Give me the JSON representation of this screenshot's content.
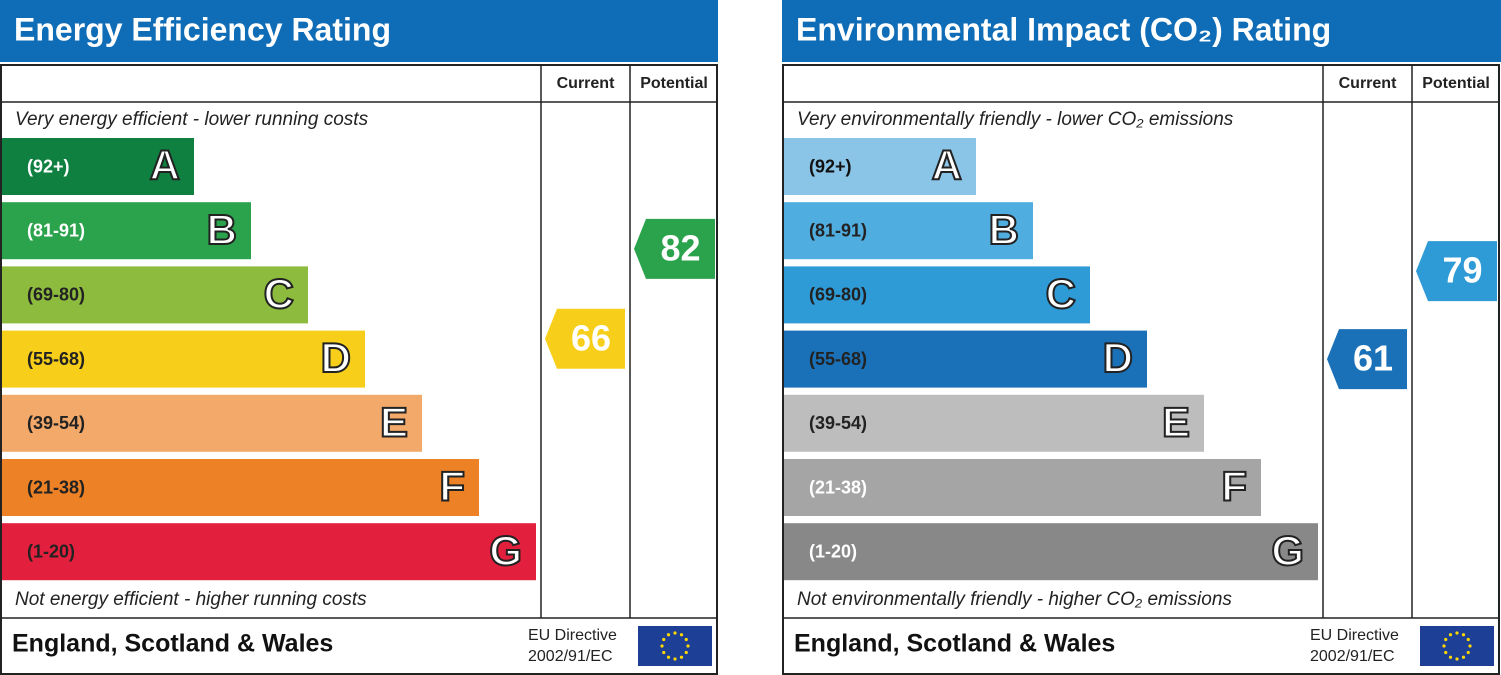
{
  "panels": [
    {
      "title": "Energy Efficiency Rating",
      "header": [
        "Current",
        "Potential"
      ],
      "top_note": "Very energy efficient - lower running costs",
      "bottom_note": "Not energy efficient - higher running costs",
      "bands": [
        {
          "range": "(92+)",
          "letter": "A",
          "color": "#0f8040",
          "text_color": "#ffffff"
        },
        {
          "range": "(81-91)",
          "letter": "B",
          "color": "#2ba24c",
          "text_color": "#ffffff"
        },
        {
          "range": "(69-80)",
          "letter": "C",
          "color": "#8dbb3e",
          "text_color": "#222222"
        },
        {
          "range": "(55-68)",
          "letter": "D",
          "color": "#f7cf1a",
          "text_color": "#222222"
        },
        {
          "range": "(39-54)",
          "letter": "E",
          "color": "#f2a96a",
          "text_color": "#222222"
        },
        {
          "range": "(21-38)",
          "letter": "F",
          "color": "#ed8125",
          "text_color": "#222222"
        },
        {
          "range": "(1-20)",
          "letter": "G",
          "color": "#e21f3c",
          "text_color": "#222222"
        }
      ],
      "current": 66,
      "potential": 82,
      "footer": "England, Scotland & Wales",
      "directive": [
        "EU Directive",
        "2002/91/EC"
      ]
    },
    {
      "title": "Environmental Impact (CO₂) Rating",
      "header": [
        "Current",
        "Potential"
      ],
      "top_note": "Very environmentally friendly - lower CO₂ emissions",
      "bottom_note": "Not environmentally friendly - higher CO₂ emissions",
      "bands": [
        {
          "range": "(92+)",
          "letter": "A",
          "color": "#8ac4e7",
          "text_color": "#111111"
        },
        {
          "range": "(81-91)",
          "letter": "B",
          "color": "#50ade0",
          "text_color": "#222222"
        },
        {
          "range": "(69-80)",
          "letter": "C",
          "color": "#2e9ad6",
          "text_color": "#222222"
        },
        {
          "range": "(55-68)",
          "letter": "D",
          "color": "#1a71b8",
          "text_color": "#222222"
        },
        {
          "range": "(39-54)",
          "letter": "E",
          "color": "#bdbdbd",
          "text_color": "#222222"
        },
        {
          "range": "(21-38)",
          "letter": "F",
          "color": "#a5a5a5",
          "text_color": "#ffffff"
        },
        {
          "range": "(1-20)",
          "letter": "G",
          "color": "#888888",
          "text_color": "#ffffff"
        }
      ],
      "current": 61,
      "potential": 79,
      "footer": "England, Scotland & Wales",
      "directive": [
        "EU Directive",
        "2002/91/EC"
      ]
    }
  ]
}
